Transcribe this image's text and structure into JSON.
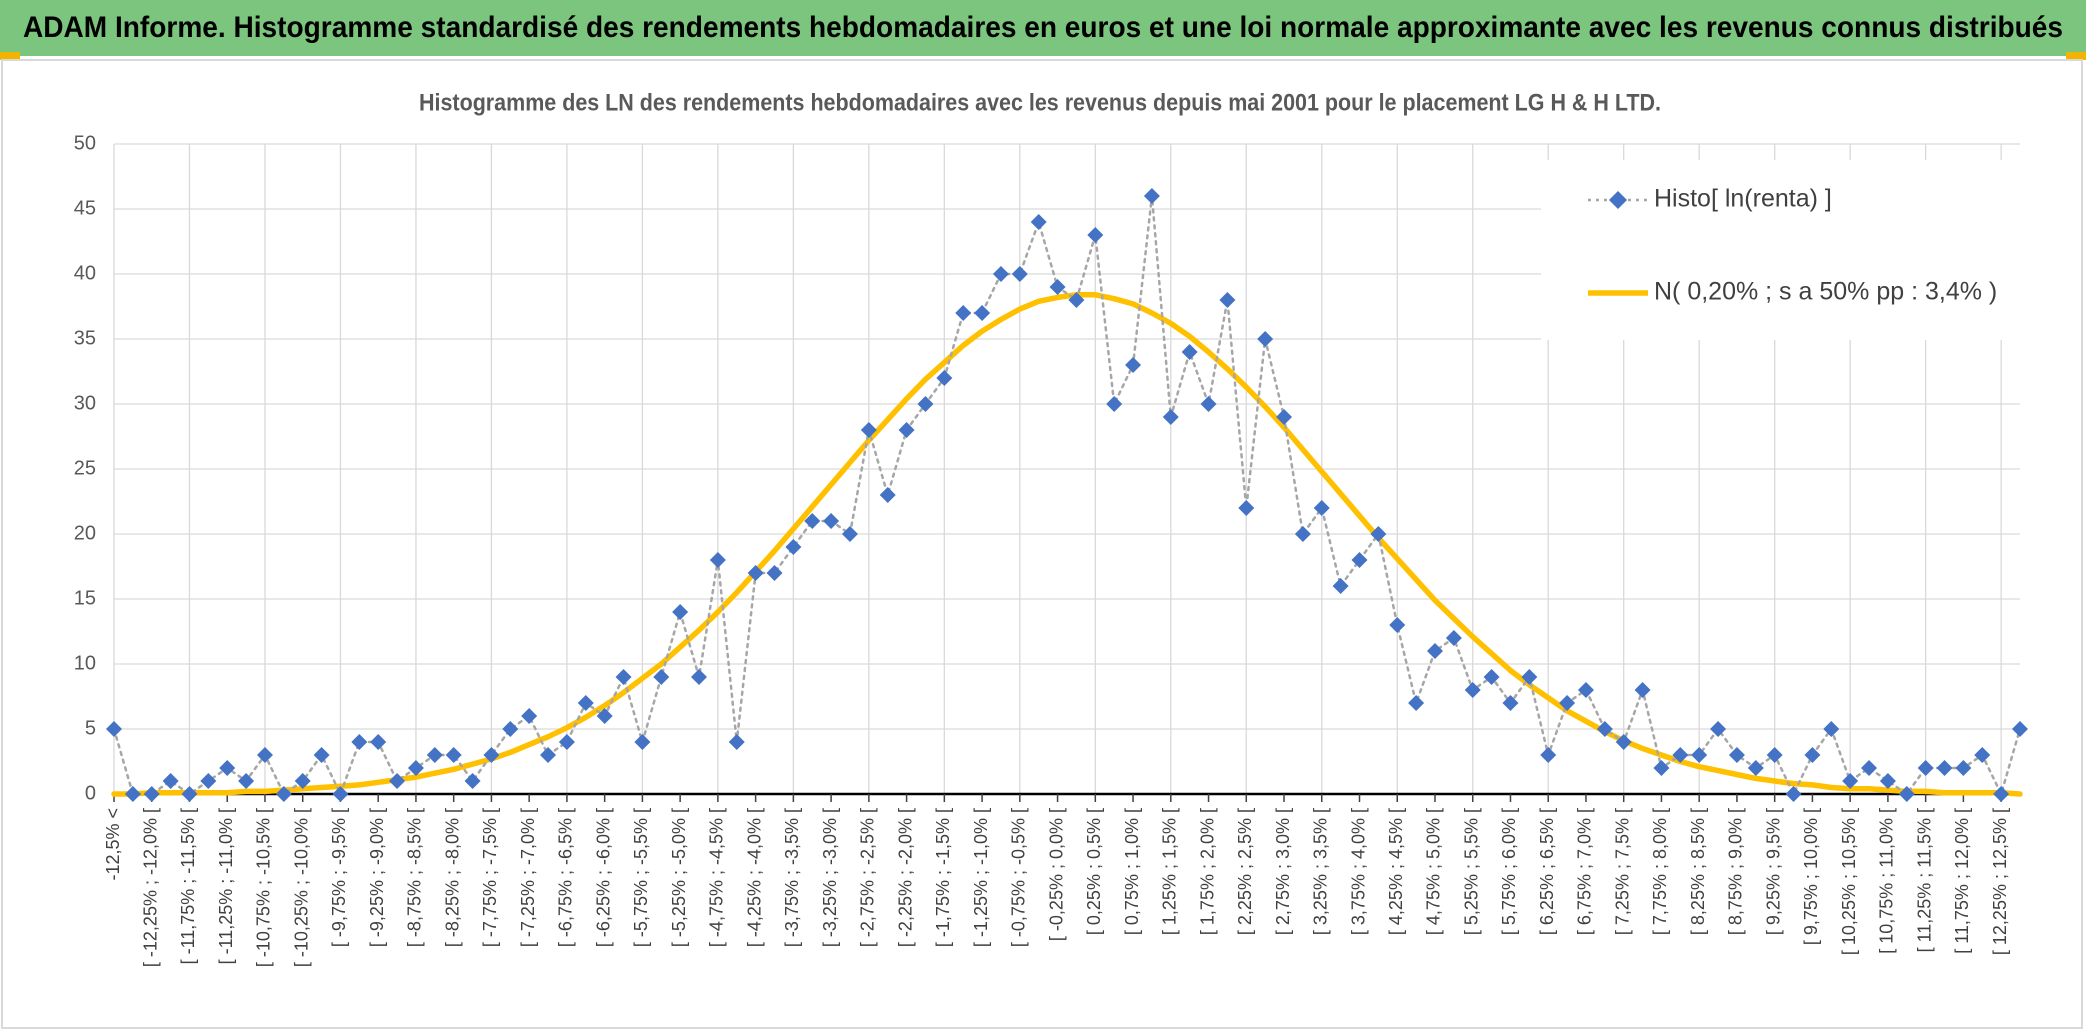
{
  "chart_data": {
    "type": "line",
    "page_title": "ADAM Informe. Histogramme standardisé des rendements hebdomadaires en euros et une loi normale approximante avec les revenus connus distribués",
    "title": "Histogramme des LN des rendements hebdomadaires avec les revenus depuis mai 2001 pour le placement LG H & H LTD.",
    "categories": [
      "-12,5% <",
      null,
      "[ -12,25% ; -12,0% [",
      null,
      "[ -11,75% ; -11,5% [",
      null,
      "[ -11,25% ; -11,0% [",
      null,
      "[ -10,75% ; -10,5% [",
      null,
      "[ -10,25% ; -10,0% [",
      null,
      "[ -9,75% ; -9,5% [",
      null,
      "[ -9,25% ; -9,0% [",
      null,
      "[ -8,75% ; -8,5% [",
      null,
      "[ -8,25% ; -8,0% [",
      null,
      "[ -7,75% ; -7,5% [",
      null,
      "[ -7,25% ; -7,0% [",
      null,
      "[ -6,75% ; -6,5% [",
      null,
      "[ -6,25% ; -6,0% [",
      null,
      "[ -5,75% ; -5,5% [",
      null,
      "[ -5,25% ; -5,0% [",
      null,
      "[ -4,75% ; -4,5% [",
      null,
      "[ -4,25% ; -4,0% [",
      null,
      "[ -3,75% ; -3,5% [",
      null,
      "[ -3,25% ; -3,0% [",
      null,
      "[ -2,75% ; -2,5% [",
      null,
      "[ -2,25% ; -2,0% [",
      null,
      "[ -1,75% ; -1,5% [",
      null,
      "[ -1,25% ; -1,0% [",
      null,
      "[ -0,75% ; -0,5% [",
      null,
      "[ -0,25% ; 0,0% [",
      null,
      "[ 0,25% ; 0,5% [",
      null,
      "[ 0,75% ; 1,0% [",
      null,
      "[ 1,25% ; 1,5% [",
      null,
      "[ 1,75% ; 2,0% [",
      null,
      "[ 2,25% ; 2,5% [",
      null,
      "[ 2,75% ; 3,0% [",
      null,
      "[ 3,25% ; 3,5% [",
      null,
      "[ 3,75% ; 4,0% [",
      null,
      "[ 4,25% ; 4,5% [",
      null,
      "[ 4,75% ; 5,0% [",
      null,
      "[ 5,25% ; 5,5% [",
      null,
      "[ 5,75% ; 6,0% [",
      null,
      "[ 6,25% ; 6,5% [",
      null,
      "[ 6,75% ; 7,0% [",
      null,
      "[ 7,25% ; 7,5% [",
      null,
      "[ 7,75% ; 8,0% [",
      null,
      "[ 8,25% ; 8,5% [",
      null,
      "[ 8,75% ; 9,0% [",
      null,
      "[ 9,25% ; 9,5% [",
      null,
      "[ 9,75% ; 10,0% [",
      null,
      "[ 10,25% ; 10,5% [",
      null,
      "[ 10,75% ; 11,0% [",
      null,
      "[ 11,25% ; 11,5% [",
      null,
      "[ 11,75% ; 12,0% [",
      null,
      "[ 12,25% ; 12,5% [",
      null
    ],
    "series": [
      {
        "name": "Histo[ ln(renta) ]",
        "color": "#4472c4",
        "line_color": "#a6a6a6",
        "line_style": "dotted",
        "marker": "diamond",
        "values": [
          5,
          0,
          0,
          1,
          0,
          1,
          2,
          1,
          3,
          0,
          1,
          3,
          0,
          4,
          4,
          1,
          2,
          3,
          3,
          1,
          3,
          5,
          6,
          3,
          4,
          7,
          6,
          9,
          4,
          9,
          14,
          9,
          18,
          4,
          17,
          17,
          19,
          21,
          21,
          20,
          28,
          23,
          28,
          30,
          32,
          37,
          37,
          40,
          40,
          44,
          39,
          38,
          43,
          30,
          33,
          46,
          29,
          34,
          30,
          38,
          22,
          35,
          29,
          20,
          22,
          16,
          18,
          20,
          13,
          7,
          11,
          12,
          8,
          9,
          7,
          9,
          3,
          7,
          8,
          5,
          4,
          8,
          2,
          3,
          3,
          5,
          3,
          2,
          3,
          0,
          3,
          5,
          1,
          2,
          1,
          0,
          2,
          2,
          2,
          3,
          0,
          5
        ]
      },
      {
        "name": "N( 0,20% ; s a 50% pp : 3,4% )",
        "color": "#ffc000",
        "line_style": "solid",
        "marker": "none",
        "values": [
          0.0,
          0.0,
          0.1,
          0.1,
          0.1,
          0.1,
          0.1,
          0.2,
          0.2,
          0.3,
          0.4,
          0.5,
          0.6,
          0.7,
          0.9,
          1.1,
          1.3,
          1.6,
          1.9,
          2.3,
          2.7,
          3.2,
          3.8,
          4.4,
          5.1,
          5.9,
          6.8,
          7.8,
          8.9,
          10.0,
          11.3,
          12.6,
          14.0,
          15.5,
          17.1,
          18.7,
          20.4,
          22.1,
          23.8,
          25.5,
          27.2,
          28.8,
          30.4,
          31.9,
          33.2,
          34.5,
          35.6,
          36.5,
          37.3,
          37.9,
          38.2,
          38.4,
          38.4,
          38.1,
          37.7,
          37.0,
          36.2,
          35.2,
          34.0,
          32.7,
          31.3,
          29.8,
          28.2,
          26.5,
          24.8,
          23.1,
          21.4,
          19.7,
          18.1,
          16.5,
          14.9,
          13.5,
          12.1,
          10.8,
          9.5,
          8.4,
          7.4,
          6.4,
          5.6,
          4.8,
          4.1,
          3.5,
          3.0,
          2.5,
          2.1,
          1.8,
          1.5,
          1.2,
          1.0,
          0.8,
          0.7,
          0.5,
          0.4,
          0.4,
          0.3,
          0.2,
          0.2,
          0.1,
          0.1,
          0.1,
          0.1,
          0.0
        ]
      }
    ],
    "ylim": [
      0,
      50
    ],
    "yticks": [
      0,
      5,
      10,
      15,
      20,
      25,
      30,
      35,
      40,
      45,
      50
    ],
    "grid": true,
    "legend": "top-right"
  }
}
